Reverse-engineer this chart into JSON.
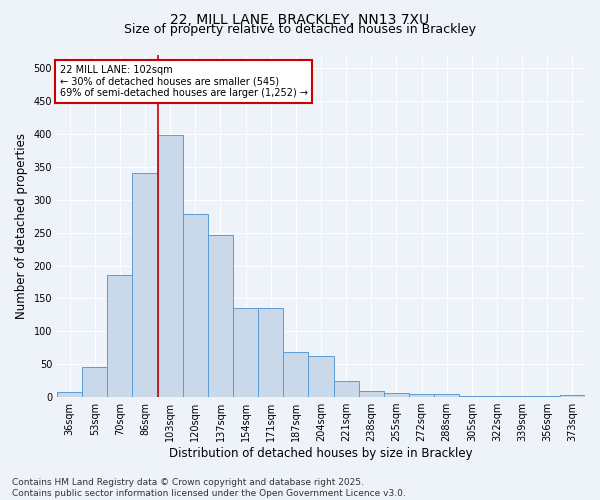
{
  "title_line1": "22, MILL LANE, BRACKLEY, NN13 7XU",
  "title_line2": "Size of property relative to detached houses in Brackley",
  "xlabel": "Distribution of detached houses by size in Brackley",
  "ylabel": "Number of detached properties",
  "categories": [
    "36sqm",
    "53sqm",
    "70sqm",
    "86sqm",
    "103sqm",
    "120sqm",
    "137sqm",
    "154sqm",
    "171sqm",
    "187sqm",
    "204sqm",
    "221sqm",
    "238sqm",
    "255sqm",
    "272sqm",
    "288sqm",
    "305sqm",
    "322sqm",
    "339sqm",
    "356sqm",
    "373sqm"
  ],
  "values": [
    8,
    45,
    185,
    340,
    398,
    278,
    246,
    135,
    135,
    68,
    62,
    25,
    10,
    6,
    4,
    4,
    1,
    1,
    1,
    1,
    3
  ],
  "bar_color": "#c9d9ea",
  "bar_edge_color": "#5b9bd5",
  "red_line_index": 4,
  "annotation_text": "22 MILL LANE: 102sqm\n← 30% of detached houses are smaller (545)\n69% of semi-detached houses are larger (1,252) →",
  "annotation_box_color": "#ffffff",
  "annotation_box_edge_color": "#cc0000",
  "ylim": [
    0,
    520
  ],
  "yticks": [
    0,
    50,
    100,
    150,
    200,
    250,
    300,
    350,
    400,
    450,
    500
  ],
  "footer_line1": "Contains HM Land Registry data © Crown copyright and database right 2025.",
  "footer_line2": "Contains public sector information licensed under the Open Government Licence v3.0.",
  "background_color": "#eef2f9",
  "grid_color": "#ffffff",
  "title_fontsize": 10,
  "subtitle_fontsize": 9,
  "tick_fontsize": 7,
  "label_fontsize": 8.5,
  "footer_fontsize": 6.5
}
